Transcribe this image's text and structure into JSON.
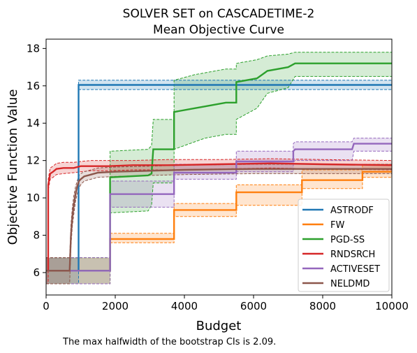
{
  "chart_data": {
    "type": "line",
    "title": "SOLVER SET on CASCADETIME-2",
    "subtitle": "Mean Objective Curve",
    "xlabel": "Budget",
    "ylabel": "Objective Function Value",
    "xlim": [
      0,
      10000
    ],
    "ylim": [
      4.8,
      18.5
    ],
    "xticks": [
      0,
      2000,
      4000,
      6000,
      8000,
      10000
    ],
    "yticks": [
      6,
      8,
      10,
      12,
      14,
      16,
      18
    ],
    "grid": false,
    "legend_position": "lower-right",
    "footnote": "The max halfwidth of the bootstrap CIs is 2.09.",
    "series": [
      {
        "name": "ASTRODF",
        "color": "#1f77b4",
        "x": [
          0,
          940,
          940,
          10000
        ],
        "y": [
          6.1,
          6.1,
          16.05,
          16.05
        ],
        "lower": [
          5.4,
          5.4,
          15.8,
          15.8
        ],
        "upper": [
          6.8,
          6.8,
          16.3,
          16.3
        ]
      },
      {
        "name": "FW",
        "color": "#ff7f0e",
        "x": [
          0,
          1850,
          1850,
          3700,
          3700,
          5500,
          5500,
          7400,
          7400,
          9150,
          9150,
          10000
        ],
        "y": [
          6.1,
          6.1,
          7.8,
          7.8,
          9.35,
          9.35,
          10.3,
          10.3,
          10.95,
          10.95,
          11.4,
          11.4
        ],
        "lower": [
          5.4,
          5.4,
          7.6,
          7.6,
          9.0,
          9.0,
          9.6,
          9.6,
          10.5,
          10.5,
          11.1,
          11.1
        ],
        "upper": [
          6.8,
          6.8,
          8.1,
          8.1,
          9.7,
          9.7,
          10.7,
          10.7,
          11.5,
          11.5,
          11.8,
          11.8
        ]
      },
      {
        "name": "PGD-SS",
        "color": "#2ca02c",
        "x": [
          0,
          1850,
          1850,
          2950,
          3050,
          3100,
          3700,
          3700,
          4300,
          4600,
          5200,
          5500,
          5500,
          6100,
          6400,
          7000,
          7200,
          10000
        ],
        "y": [
          6.1,
          6.1,
          11.1,
          11.2,
          11.3,
          12.6,
          12.6,
          14.6,
          14.8,
          14.9,
          15.1,
          15.1,
          16.2,
          16.4,
          16.8,
          17.0,
          17.2,
          17.2
        ],
        "lower": [
          5.4,
          5.4,
          9.2,
          9.3,
          9.6,
          10.8,
          10.8,
          12.6,
          13.0,
          13.2,
          13.4,
          13.4,
          14.2,
          14.8,
          15.6,
          15.9,
          16.5,
          16.5
        ],
        "upper": [
          6.8,
          6.8,
          12.5,
          12.6,
          12.8,
          14.2,
          14.2,
          16.3,
          16.6,
          16.7,
          16.9,
          16.9,
          17.2,
          17.4,
          17.6,
          17.7,
          17.8,
          17.8
        ]
      },
      {
        "name": "RNDSRCH",
        "color": "#d62728",
        "x": [
          0,
          60,
          60,
          120,
          200,
          300,
          500,
          800,
          1000,
          1300,
          1800,
          2500,
          3500,
          5000,
          6500,
          8000,
          10000
        ],
        "y": [
          6.1,
          6.1,
          10.7,
          11.3,
          11.4,
          11.55,
          11.6,
          11.6,
          11.7,
          11.7,
          11.7,
          11.75,
          11.75,
          11.8,
          11.85,
          11.8,
          11.75
        ],
        "lower": [
          5.4,
          5.4,
          10.4,
          11.0,
          11.1,
          11.25,
          11.3,
          11.35,
          11.4,
          11.45,
          11.45,
          11.5,
          11.5,
          11.55,
          11.6,
          11.55,
          11.5
        ],
        "upper": [
          6.8,
          6.8,
          11.0,
          11.6,
          11.7,
          11.85,
          11.9,
          11.9,
          11.95,
          12.0,
          12.0,
          12.0,
          12.05,
          12.05,
          12.1,
          12.05,
          12.0
        ]
      },
      {
        "name": "ACTIVESET",
        "color": "#9467bd",
        "x": [
          0,
          1850,
          1850,
          3700,
          3700,
          5500,
          5500,
          7150,
          7150,
          7200,
          8850,
          8900,
          10000
        ],
        "y": [
          6.1,
          6.1,
          10.2,
          10.2,
          11.35,
          11.35,
          11.95,
          11.95,
          12.5,
          12.6,
          12.6,
          12.9,
          12.9
        ],
        "lower": [
          5.4,
          5.4,
          9.5,
          9.5,
          11.0,
          11.0,
          11.4,
          11.4,
          11.9,
          12.0,
          12.0,
          12.5,
          12.5
        ],
        "upper": [
          6.8,
          6.8,
          10.9,
          10.9,
          11.8,
          11.8,
          12.5,
          12.5,
          12.9,
          13.0,
          13.0,
          13.2,
          13.2
        ]
      },
      {
        "name": "NELDMD",
        "color": "#8c564b",
        "x": [
          0,
          680,
          720,
          760,
          800,
          850,
          900,
          950,
          1000,
          1100,
          1300,
          1500,
          2000,
          3000,
          4000,
          6000,
          8000,
          10000
        ],
        "y": [
          6.1,
          6.1,
          8.0,
          9.0,
          9.6,
          10.2,
          10.6,
          10.9,
          11.0,
          11.15,
          11.25,
          11.35,
          11.4,
          11.45,
          11.5,
          11.55,
          11.55,
          11.55
        ],
        "lower": [
          5.4,
          5.4,
          7.4,
          8.5,
          9.1,
          9.8,
          10.2,
          10.5,
          10.7,
          10.9,
          11.0,
          11.1,
          11.15,
          11.2,
          11.25,
          11.3,
          11.3,
          11.3
        ],
        "upper": [
          6.8,
          6.8,
          8.6,
          9.5,
          10.1,
          10.6,
          10.9,
          11.2,
          11.3,
          11.4,
          11.5,
          11.6,
          11.65,
          11.7,
          11.75,
          11.8,
          11.8,
          11.8
        ]
      }
    ]
  }
}
